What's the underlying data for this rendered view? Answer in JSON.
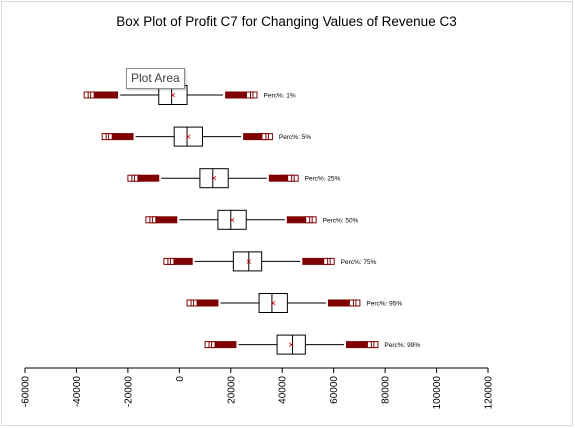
{
  "chart_data": {
    "type": "box",
    "title": "Box Plot of Profit C7 for Changing Values of Revenue C3",
    "tooltip": "Plot Area",
    "xlim": [
      -60000,
      120000
    ],
    "xticks": [
      -60000,
      -40000,
      -20000,
      0,
      20000,
      40000,
      60000,
      80000,
      100000,
      120000
    ],
    "tick_labels": [
      "-60000",
      "-40000",
      "-20000",
      "0",
      "20000",
      "40000",
      "60000",
      "80000",
      "100000",
      "120000"
    ],
    "grid": false,
    "outlier_color": "#7f0000",
    "mean_marker_color": "#c00000",
    "series": [
      {
        "name": "Perc%: 1%",
        "q1": -8000,
        "median": -3000,
        "q3": 3000,
        "mean": -2500,
        "wlow": -23000,
        "whigh": 17000,
        "olow": [
          -37000,
          -24000
        ],
        "ohigh": [
          18000,
          30000
        ]
      },
      {
        "name": "Perc%: 5%",
        "q1": -2000,
        "median": 3000,
        "q3": 9000,
        "mean": 3500,
        "wlow": -17000,
        "whigh": 24000,
        "olow": [
          -30000,
          -18000
        ],
        "ohigh": [
          25000,
          36000
        ]
      },
      {
        "name": "Perc%: 25%",
        "q1": 8000,
        "median": 13000,
        "q3": 19000,
        "mean": 13500,
        "wlow": -7000,
        "whigh": 34000,
        "olow": [
          -20000,
          -8000
        ],
        "ohigh": [
          35000,
          46000
        ]
      },
      {
        "name": "Perc%: 50%",
        "q1": 15000,
        "median": 20000,
        "q3": 26000,
        "mean": 20500,
        "wlow": 0,
        "whigh": 41000,
        "olow": [
          -13000,
          -1000
        ],
        "ohigh": [
          42000,
          53000
        ]
      },
      {
        "name": "Perc%: 75%",
        "q1": 21000,
        "median": 27000,
        "q3": 32000,
        "mean": 27000,
        "wlow": 6000,
        "whigh": 47000,
        "olow": [
          -6000,
          5000
        ],
        "ohigh": [
          48000,
          60000
        ]
      },
      {
        "name": "Perc%: 95%",
        "q1": 31000,
        "median": 36000,
        "q3": 42000,
        "mean": 36500,
        "wlow": 16000,
        "whigh": 57000,
        "olow": [
          3000,
          15000
        ],
        "ohigh": [
          58000,
          70000
        ]
      },
      {
        "name": "Perc%: 99%",
        "q1": 38000,
        "median": 44000,
        "q3": 49000,
        "mean": 43500,
        "wlow": 23000,
        "whigh": 64000,
        "olow": [
          10000,
          22000
        ],
        "ohigh": [
          65000,
          77000
        ]
      }
    ]
  }
}
